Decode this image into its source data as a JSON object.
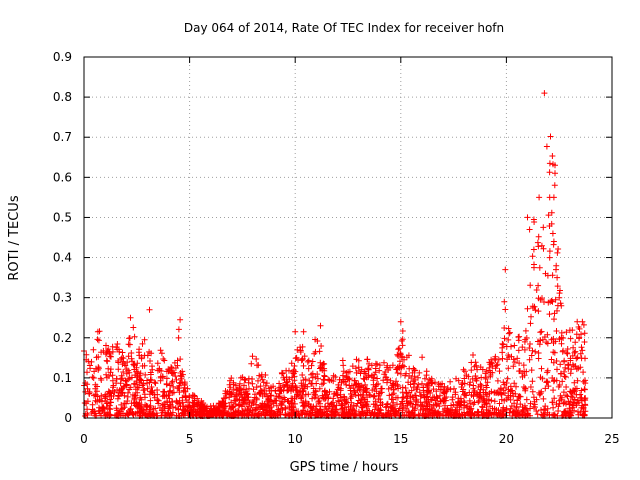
{
  "chart_data": {
    "type": "scatter",
    "title": "Day 064 of 2014, Rate Of TEC Index for receiver hofn",
    "xlabel": "GPS time / hours",
    "ylabel": "ROTI / TECUs",
    "xlim": [
      0,
      25
    ],
    "ylim": [
      0,
      0.9
    ],
    "x_ticks": [
      "0",
      "5",
      "10",
      "15",
      "20",
      "25"
    ],
    "y_ticks": [
      "0",
      "0.1",
      "0.2",
      "0.3",
      "0.4",
      "0.5",
      "0.6",
      "0.7",
      "0.8",
      "0.9"
    ],
    "grid": true,
    "marker": "+",
    "colors": {
      "points": "#ff0000",
      "grid": "#a0a0a0",
      "axes": "#000000"
    },
    "series": [
      {
        "name": "ROTI",
        "envelope": {
          "x": [
            0,
            0.25,
            0.5,
            0.75,
            1,
            1.25,
            1.5,
            1.75,
            2,
            2.25,
            2.5,
            2.75,
            3,
            3.25,
            3.5,
            3.75,
            4,
            4.25,
            4.5,
            4.75,
            5,
            5.25,
            5.5,
            5.75,
            6,
            6.25,
            6.5,
            6.75,
            7,
            7.25,
            7.5,
            7.75,
            8,
            8.25,
            8.5,
            8.75,
            9,
            9.25,
            9.5,
            9.75,
            10,
            10.25,
            10.5,
            10.75,
            11,
            11.25,
            11.5,
            11.75,
            12,
            12.25,
            12.5,
            12.75,
            13,
            13.25,
            13.5,
            13.75,
            14,
            14.25,
            14.5,
            14.75,
            15,
            15.25,
            15.5,
            15.75,
            16,
            16.25,
            16.5,
            16.75,
            17,
            17.25,
            17.5,
            17.75,
            18,
            18.25,
            18.5,
            18.75,
            19,
            19.25,
            19.5,
            19.75,
            20,
            20.25,
            20.5,
            20.75,
            21,
            21.25,
            21.5,
            21.75,
            22,
            22.25,
            22.5,
            22.75,
            23,
            23.25,
            23.5,
            23.75
          ],
          "y": [
            0.17,
            0.15,
            0.2,
            0.22,
            0.18,
            0.16,
            0.19,
            0.17,
            0.14,
            0.25,
            0.18,
            0.19,
            0.2,
            0.16,
            0.19,
            0.15,
            0.14,
            0.11,
            0.24,
            0.1,
            0.06,
            0.05,
            0.04,
            0.03,
            0.03,
            0.03,
            0.04,
            0.07,
            0.1,
            0.09,
            0.1,
            0.11,
            0.17,
            0.13,
            0.12,
            0.08,
            0.1,
            0.12,
            0.11,
            0.13,
            0.15,
            0.21,
            0.15,
            0.13,
            0.22,
            0.17,
            0.09,
            0.1,
            0.12,
            0.14,
            0.11,
            0.13,
            0.15,
            0.12,
            0.16,
            0.13,
            0.14,
            0.15,
            0.12,
            0.15,
            0.24,
            0.17,
            0.15,
            0.14,
            0.16,
            0.11,
            0.09,
            0.08,
            0.09,
            0.08,
            0.1,
            0.13,
            0.12,
            0.14,
            0.16,
            0.13,
            0.12,
            0.14,
            0.16,
            0.18,
            0.37,
            0.16,
            0.24,
            0.21,
            0.27,
            0.5,
            0.47,
            0.55,
            0.81,
            0.63,
            0.38,
            0.22,
            0.22,
            0.21,
            0.24,
            0.23
          ]
        },
        "highlights": [
          {
            "x": 3.1,
            "y": 0.27
          },
          {
            "x": 2.2,
            "y": 0.25
          },
          {
            "x": 4.55,
            "y": 0.245
          },
          {
            "x": 10.0,
            "y": 0.215
          },
          {
            "x": 10.4,
            "y": 0.215
          },
          {
            "x": 11.2,
            "y": 0.23
          },
          {
            "x": 15.0,
            "y": 0.24
          },
          {
            "x": 19.95,
            "y": 0.37
          },
          {
            "x": 19.9,
            "y": 0.29
          },
          {
            "x": 21.0,
            "y": 0.5
          },
          {
            "x": 21.1,
            "y": 0.47
          },
          {
            "x": 21.3,
            "y": 0.42
          },
          {
            "x": 21.55,
            "y": 0.55
          },
          {
            "x": 21.8,
            "y": 0.81
          },
          {
            "x": 22.05,
            "y": 0.55
          },
          {
            "x": 22.25,
            "y": 0.55
          },
          {
            "x": 22.3,
            "y": 0.63
          },
          {
            "x": 22.3,
            "y": 0.61
          },
          {
            "x": 22.2,
            "y": 0.46
          },
          {
            "x": 22.25,
            "y": 0.44
          },
          {
            "x": 22.05,
            "y": 0.4
          },
          {
            "x": 21.85,
            "y": 0.36
          },
          {
            "x": 22.35,
            "y": 0.37
          },
          {
            "x": 22.4,
            "y": 0.35
          },
          {
            "x": 21.5,
            "y": 0.33
          },
          {
            "x": 22.5,
            "y": 0.3
          },
          {
            "x": 22.6,
            "y": 0.28
          },
          {
            "x": 23.35,
            "y": 0.24
          },
          {
            "x": 23.6,
            "y": 0.24
          }
        ]
      }
    ]
  }
}
